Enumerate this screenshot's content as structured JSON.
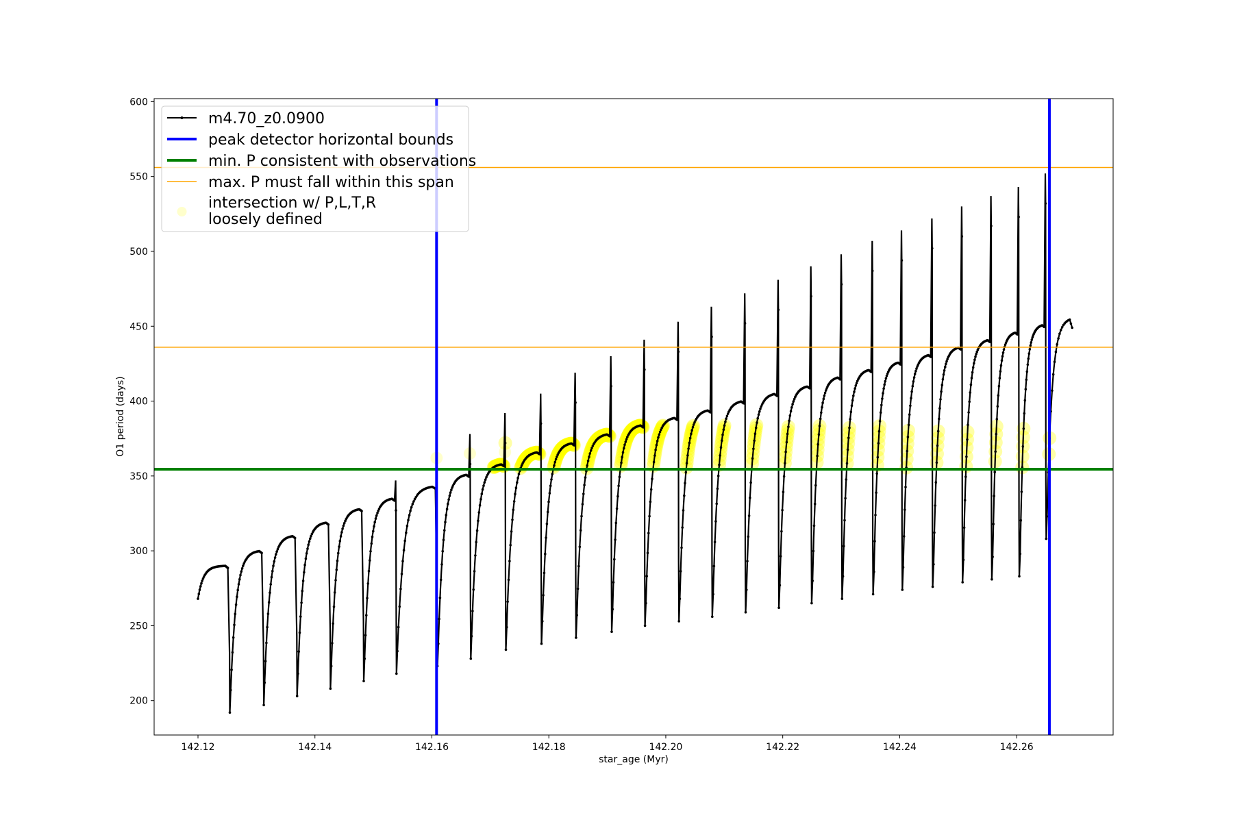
{
  "chart_data": {
    "type": "line",
    "title": "",
    "xlabel": "star_age (Myr)",
    "ylabel": "O1 period (days)",
    "xlim": [
      142.1125,
      142.2765
    ],
    "ylim": [
      177,
      602
    ],
    "xticks": [
      142.12,
      142.14,
      142.16,
      142.18,
      142.2,
      142.22,
      142.24,
      142.26
    ],
    "xtick_labels": [
      "142.12",
      "142.14",
      "142.16",
      "142.18",
      "142.20",
      "142.22",
      "142.24",
      "142.26"
    ],
    "yticks": [
      200,
      250,
      300,
      350,
      400,
      450,
      500,
      550,
      600
    ],
    "ytick_labels": [
      "200",
      "250",
      "300",
      "350",
      "400",
      "450",
      "500",
      "550",
      "600"
    ],
    "grid": false,
    "legend_position": "top-left",
    "series": [
      {
        "name": "m4.70_z0.0900",
        "style": "black line with small point markers",
        "color": "#000000",
        "start": {
          "x": 142.12,
          "y": 268
        },
        "cycles": [
          {
            "pulse_x": 142.1253,
            "cycle_max": 290,
            "drop_min": 192,
            "spike": null
          },
          {
            "pulse_x": 142.1311,
            "cycle_max": 300,
            "drop_min": 197,
            "spike": null
          },
          {
            "pulse_x": 142.1368,
            "cycle_max": 310,
            "drop_min": 203,
            "spike": null
          },
          {
            "pulse_x": 142.1425,
            "cycle_max": 319,
            "drop_min": 208,
            "spike": null
          },
          {
            "pulse_x": 142.1482,
            "cycle_max": 328,
            "drop_min": 213,
            "spike": null
          },
          {
            "pulse_x": 142.1538,
            "cycle_max": 335,
            "drop_min": 218,
            "spike": 347
          },
          {
            "pulse_x": 142.1608,
            "cycle_max": 343,
            "drop_min": 223,
            "spike": null
          },
          {
            "pulse_x": 142.1665,
            "cycle_max": 351,
            "drop_min": 228,
            "spike": 378
          },
          {
            "pulse_x": 142.1725,
            "cycle_max": 358,
            "drop_min": 234,
            "spike": 392
          },
          {
            "pulse_x": 142.1786,
            "cycle_max": 366,
            "drop_min": 238,
            "spike": 405
          },
          {
            "pulse_x": 142.1845,
            "cycle_max": 372,
            "drop_min": 242,
            "spike": 419
          },
          {
            "pulse_x": 142.1906,
            "cycle_max": 378,
            "drop_min": 246,
            "spike": 430
          },
          {
            "pulse_x": 142.1963,
            "cycle_max": 384,
            "drop_min": 250,
            "spike": 441
          },
          {
            "pulse_x": 142.2021,
            "cycle_max": 389,
            "drop_min": 253,
            "spike": 453
          },
          {
            "pulse_x": 142.2078,
            "cycle_max": 394,
            "drop_min": 256,
            "spike": 463
          },
          {
            "pulse_x": 142.2135,
            "cycle_max": 400,
            "drop_min": 259,
            "spike": 472
          },
          {
            "pulse_x": 142.2192,
            "cycle_max": 405,
            "drop_min": 262,
            "spike": 481
          },
          {
            "pulse_x": 142.2248,
            "cycle_max": 410,
            "drop_min": 265,
            "spike": 490
          },
          {
            "pulse_x": 142.23,
            "cycle_max": 416,
            "drop_min": 268,
            "spike": 498
          },
          {
            "pulse_x": 142.2353,
            "cycle_max": 421,
            "drop_min": 271,
            "spike": 507
          },
          {
            "pulse_x": 142.2403,
            "cycle_max": 426,
            "drop_min": 274,
            "spike": 514
          },
          {
            "pulse_x": 142.2455,
            "cycle_max": 431,
            "drop_min": 276,
            "spike": 522
          },
          {
            "pulse_x": 142.2506,
            "cycle_max": 436,
            "drop_min": 279,
            "spike": 530
          },
          {
            "pulse_x": 142.2556,
            "cycle_max": 441,
            "drop_min": 281,
            "spike": 537
          },
          {
            "pulse_x": 142.2603,
            "cycle_max": 446,
            "drop_min": 283,
            "spike": 543
          },
          {
            "pulse_x": 142.2649,
            "cycle_max": 451,
            "drop_min": 308,
            "spike": 552
          }
        ],
        "end": {
          "x": 142.2695,
          "y": 449,
          "tail_max": 455
        }
      },
      {
        "name": "peak detector horizontal bounds",
        "color": "#0000ff",
        "type": "vertical-lines",
        "x": [
          142.1608,
          142.2656
        ]
      },
      {
        "name": "min. P consistent with observations",
        "color": "#008000",
        "type": "horizontal-line",
        "y": 354.5
      },
      {
        "name": "max. P must fall within this span",
        "color": "#ffa500",
        "type": "horizontal-lines",
        "y": [
          436,
          556
        ]
      },
      {
        "name": "intersection w/ P,L,T,R\nloosely defined",
        "color": "#ffff00",
        "type": "scatter",
        "band": [
          354.5,
          384
        ],
        "x_start": 142.1705
      }
    ]
  }
}
